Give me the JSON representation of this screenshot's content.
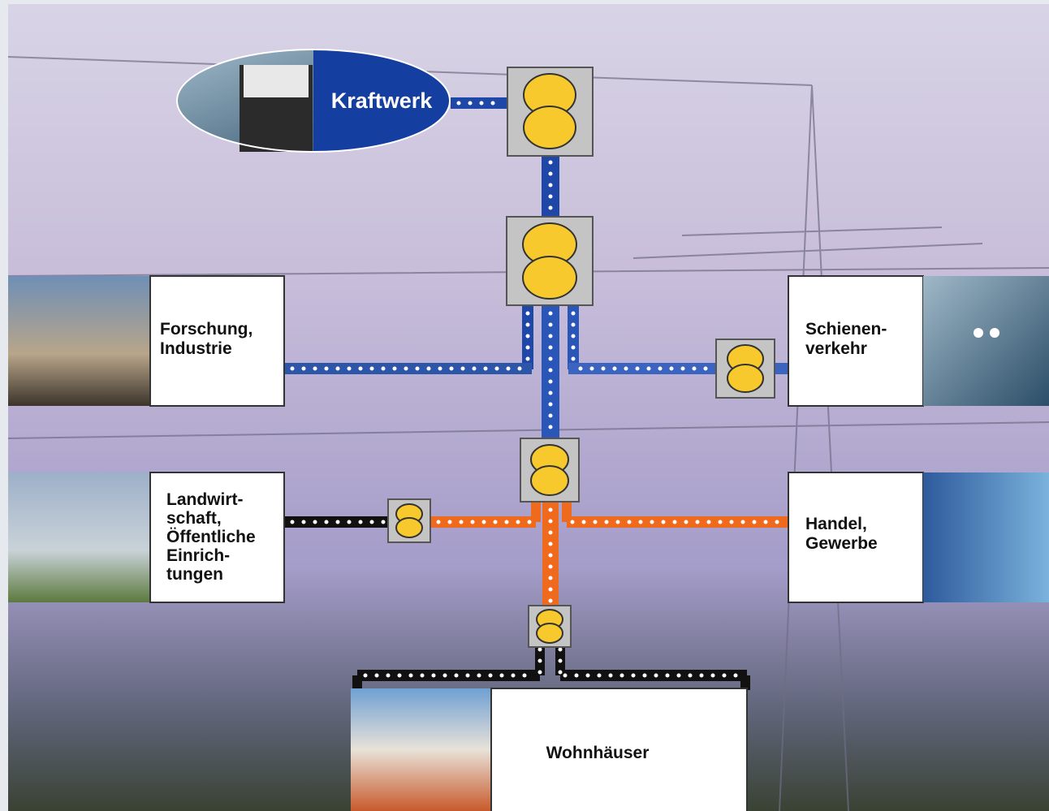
{
  "nodes": [
    {
      "id": "kraftwerk",
      "label": [
        "Kraftwerk"
      ]
    },
    {
      "id": "forschung",
      "label": [
        "Forschung,",
        "Industrie"
      ]
    },
    {
      "id": "schienen",
      "label": [
        "Schienen-",
        "verkehr"
      ]
    },
    {
      "id": "landwirtschaft",
      "label": [
        "Landwirt-",
        "schaft,",
        "Öffentliche",
        "Einrich-",
        "tungen"
      ]
    },
    {
      "id": "handel",
      "label": [
        "Handel,",
        "Gewerbe"
      ]
    },
    {
      "id": "wohnhaeuser",
      "label": [
        "Wohnhäuser"
      ]
    }
  ]
}
